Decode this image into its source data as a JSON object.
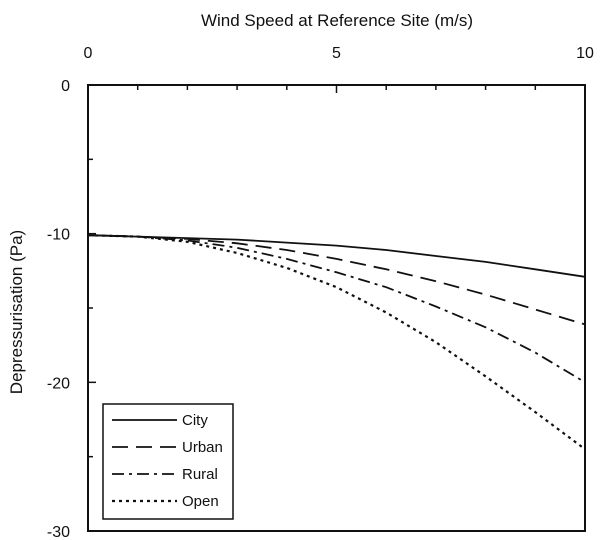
{
  "chart_data": {
    "type": "line",
    "title": "Wind Speed at Reference Site (m/s)",
    "xlabel": "Wind Speed at Reference Site (m/s)",
    "ylabel": "Depressurisation (Pa)",
    "xlim": [
      0,
      10
    ],
    "ylim": [
      -30,
      0
    ],
    "x_axis_position": "top",
    "x_ticks": [
      0,
      5,
      10
    ],
    "y_ticks": [
      0,
      -10,
      -20,
      -30
    ],
    "grid": false,
    "legend_position": "bottom-left",
    "x": [
      0,
      1,
      2,
      3,
      4,
      5,
      6,
      7,
      8,
      9,
      10
    ],
    "series": [
      {
        "name": "City",
        "style": "solid",
        "values": [
          -10.1,
          -10.2,
          -10.3,
          -10.4,
          -10.6,
          -10.8,
          -11.1,
          -11.5,
          -11.9,
          -12.4,
          -12.9
        ]
      },
      {
        "name": "Urban",
        "style": "dashed",
        "values": [
          -10.1,
          -10.2,
          -10.35,
          -10.65,
          -11.1,
          -11.7,
          -12.4,
          -13.2,
          -14.1,
          -15.1,
          -16.1
        ]
      },
      {
        "name": "Rural",
        "style": "dashdot",
        "values": [
          -10.1,
          -10.2,
          -10.45,
          -10.95,
          -11.7,
          -12.6,
          -13.6,
          -14.9,
          -16.3,
          -18.0,
          -20.0
        ]
      },
      {
        "name": "Open",
        "style": "dotted",
        "values": [
          -10.1,
          -10.2,
          -10.55,
          -11.3,
          -12.3,
          -13.6,
          -15.3,
          -17.3,
          -19.6,
          -22.0,
          -24.5
        ]
      }
    ]
  }
}
